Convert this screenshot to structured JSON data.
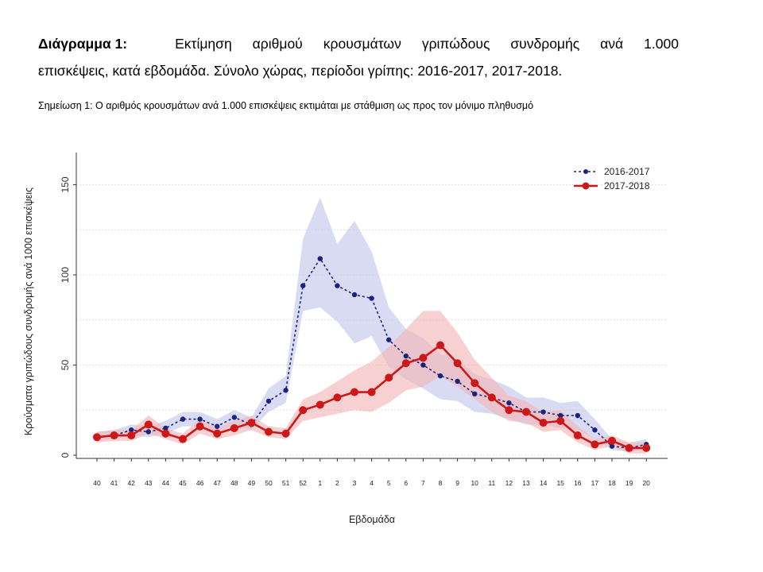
{
  "caption": {
    "label": "Διάγραμμα 1:",
    "line1_words": [
      "Εκτίμηση",
      "αριθμού",
      "κρουσμάτων",
      "γριπώδους",
      "συνδρομής",
      "ανά",
      "1.000"
    ],
    "line2": "επισκέψεις, κατά εβδομάδα. Σύνολο χώρας, περίοδοι γρίπης:  2016-2017, 2017-2018."
  },
  "note": "Σημείωση 1: Ο αριθμός κρουσμάτων ανά 1.000 επισκέψεις εκτιμάται με στάθμιση ως προς τον μόνιμο πληθυσμό",
  "chart_data": {
    "type": "line",
    "xlabel": "Εβδομάδα",
    "ylabel": "Κρούσματα γριπώδους συνδρομής ανά 1000 επισκέψεις",
    "ylim": [
      0,
      165
    ],
    "yticks": [
      0,
      50,
      100,
      150
    ],
    "grid": "horizontal dotted",
    "legend_position": "top-right",
    "categories": [
      "40",
      "41",
      "42",
      "43",
      "44",
      "45",
      "46",
      "47",
      "48",
      "49",
      "50",
      "51",
      "52",
      "1",
      "2",
      "3",
      "4",
      "5",
      "6",
      "7",
      "8",
      "9",
      "10",
      "11",
      "12",
      "13",
      "14",
      "15",
      "16",
      "17",
      "18",
      "19",
      "20"
    ],
    "series": [
      {
        "name": "2016-2017",
        "color": "#1a237e",
        "style": "dashed, small markers",
        "values": [
          10,
          11,
          14,
          13,
          15,
          20,
          20,
          16,
          21,
          17,
          30,
          36,
          94,
          109,
          94,
          89,
          87,
          64,
          55,
          50,
          44,
          41,
          34,
          32,
          29,
          24,
          24,
          22,
          22,
          14,
          5,
          4,
          6
        ],
        "ci_lower": [
          8,
          9,
          11,
          10,
          12,
          16,
          16,
          13,
          17,
          14,
          24,
          29,
          80,
          82,
          74,
          62,
          66,
          49,
          42,
          37,
          31,
          30,
          24,
          23,
          20,
          17,
          17,
          15,
          14,
          9,
          3,
          2,
          3
        ],
        "ci_upper": [
          13,
          14,
          17,
          16,
          19,
          24,
          24,
          20,
          25,
          21,
          37,
          44,
          120,
          143,
          117,
          130,
          113,
          82,
          70,
          65,
          56,
          53,
          45,
          42,
          38,
          32,
          32,
          29,
          30,
          20,
          9,
          7,
          9
        ],
        "band_color": "#c5c8ec"
      },
      {
        "name": "2017-2018",
        "color": "#cc1818",
        "style": "solid, large markers",
        "values": [
          10,
          11,
          11,
          17,
          12,
          9,
          16,
          12,
          15,
          18,
          13,
          12,
          25,
          28,
          32,
          35,
          35,
          43,
          51,
          54,
          61,
          51,
          40,
          32,
          25,
          24,
          18,
          19,
          11,
          6,
          8,
          4,
          4
        ],
        "ci_lower": [
          7,
          8,
          8,
          12,
          9,
          6,
          12,
          9,
          11,
          14,
          10,
          9,
          19,
          21,
          23,
          25,
          24,
          29,
          36,
          38,
          44,
          38,
          31,
          24,
          19,
          18,
          13,
          14,
          7,
          3,
          5,
          1,
          1
        ],
        "ci_upper": [
          13,
          14,
          14,
          22,
          15,
          12,
          20,
          15,
          19,
          22,
          16,
          15,
          31,
          35,
          41,
          47,
          52,
          60,
          70,
          80,
          80,
          68,
          53,
          43,
          33,
          30,
          24,
          25,
          16,
          9,
          11,
          7,
          7
        ],
        "band_color": "#f2b9b9"
      }
    ]
  }
}
